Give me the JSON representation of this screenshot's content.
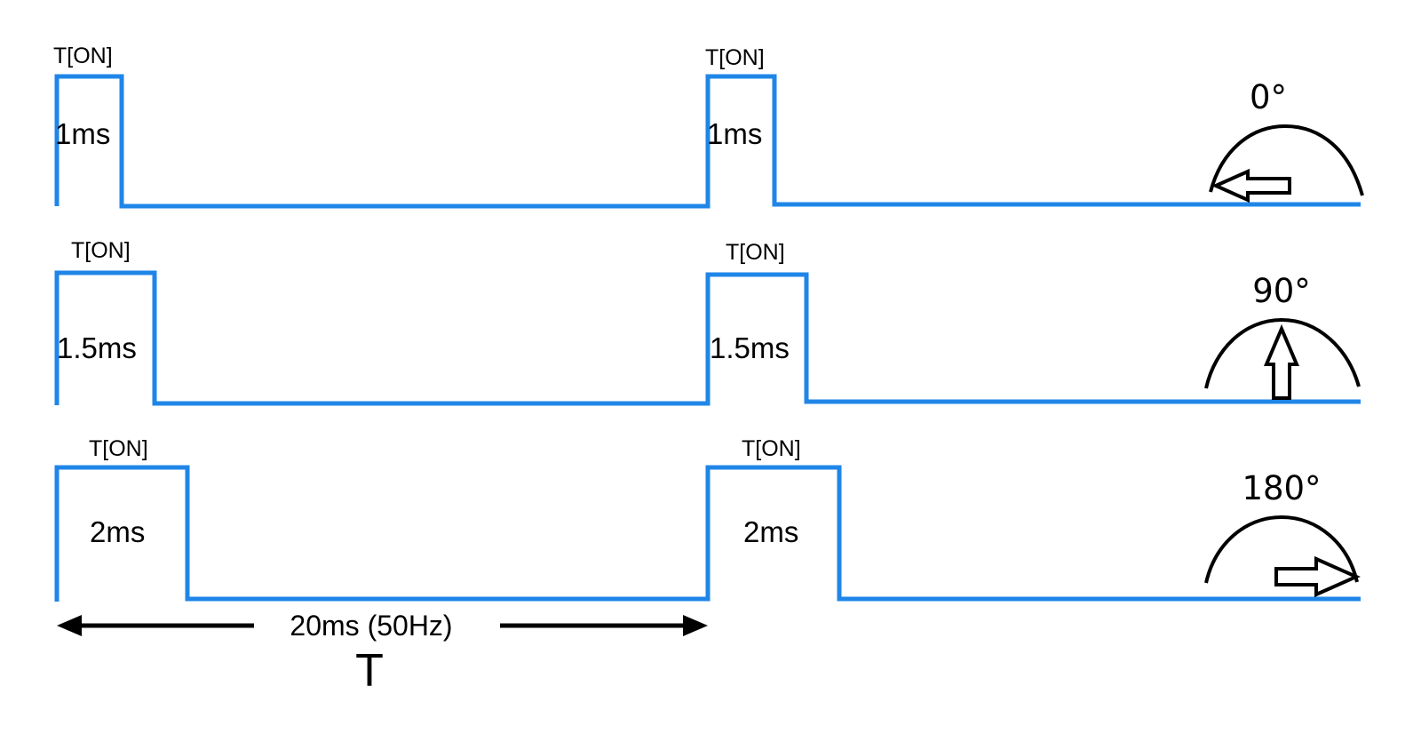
{
  "diagram": {
    "rows": [
      {
        "pulse_label_1": "T[ON]",
        "pulse_label_2": "T[ON]",
        "duration_1": "1ms",
        "duration_2": "1ms",
        "angle": "0°",
        "pointer": "left-arrow"
      },
      {
        "pulse_label_1": "T[ON]",
        "pulse_label_2": "T[ON]",
        "duration_1": "1.5ms",
        "duration_2": "1.5ms",
        "angle": "90°",
        "pointer": "up-arrow"
      },
      {
        "pulse_label_1": "T[ON]",
        "pulse_label_2": "T[ON]",
        "duration_1": "2ms",
        "duration_2": "2ms",
        "angle": "180°",
        "pointer": "right-arrow"
      }
    ],
    "period_label": "20ms (50Hz)",
    "period_symbol": "T",
    "signal_color": "#1f86e8",
    "outline_color": "#000000"
  }
}
